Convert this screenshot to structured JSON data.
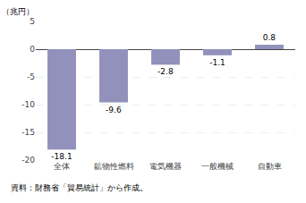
{
  "chart_data": {
    "type": "bar",
    "categories": [
      "全体",
      "鉱物性燃料",
      "電気機器",
      "一般機械",
      "自動車"
    ],
    "values": [
      -18.1,
      -9.6,
      -2.8,
      -1.1,
      0.8
    ],
    "color": "#9191bb",
    "ylabel": "（兆円）",
    "source": "資料：財務省「貿易統計」から作成。",
    "ylim": [
      -20,
      5
    ],
    "yticks": [
      -20,
      -15,
      -10,
      -5,
      0,
      5
    ],
    "grid": true,
    "data_labels": true
  }
}
